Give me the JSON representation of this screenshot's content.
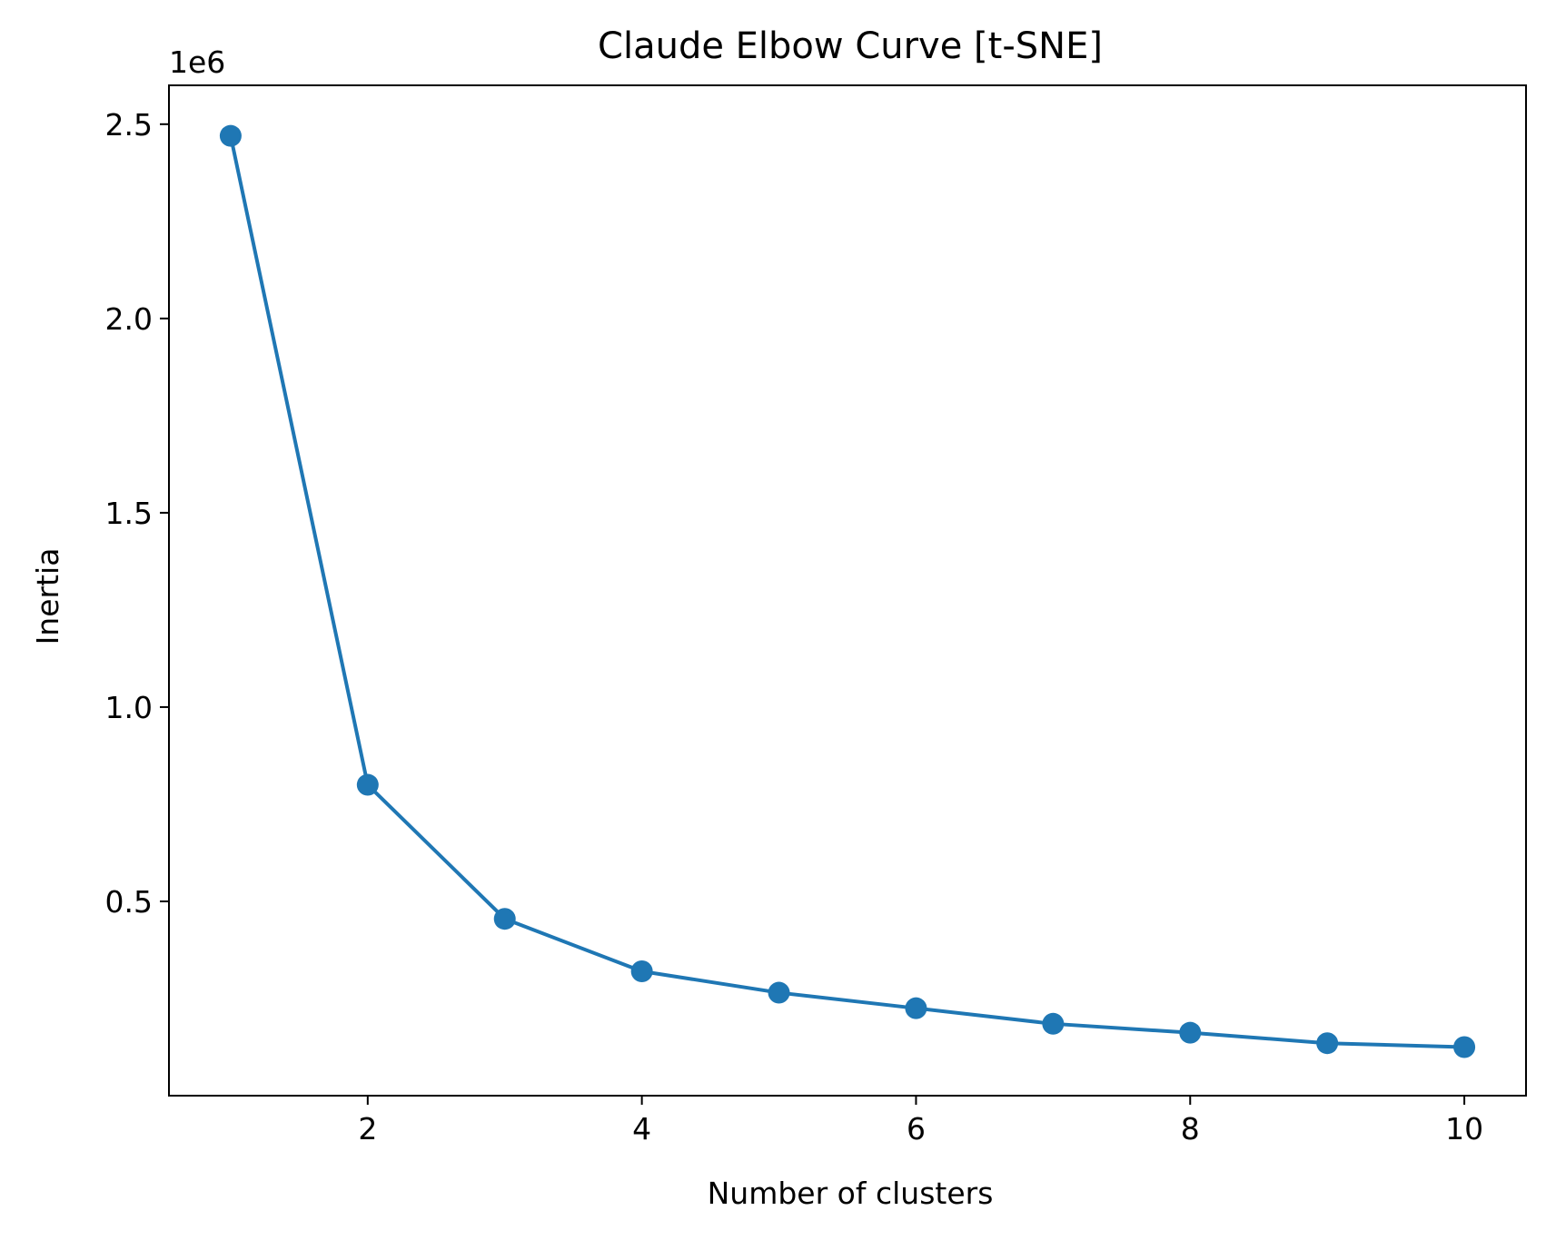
{
  "chart_data": {
    "type": "line",
    "title": "Claude Elbow Curve [t-SNE]",
    "xlabel": "Number of clusters",
    "ylabel": "Inertia",
    "y_offset_label": "1e6",
    "xlim": [
      0.55,
      10.45
    ],
    "ylim": [
      0.0,
      2.6
    ],
    "xticks": [
      2,
      4,
      6,
      8,
      10
    ],
    "xtick_labels": [
      "2",
      "4",
      "6",
      "8",
      "10"
    ],
    "yticks": [
      0.5,
      1.0,
      1.5,
      2.0,
      2.5
    ],
    "ytick_labels": [
      "0.5",
      "1.0",
      "1.5",
      "2.0",
      "2.5"
    ],
    "grid": false,
    "legend": "none",
    "series": [
      {
        "color": "#1f77b4",
        "marker": "circle",
        "x": [
          1,
          2,
          3,
          4,
          5,
          6,
          7,
          8,
          9,
          10
        ],
        "y": [
          2.47,
          0.8,
          0.455,
          0.32,
          0.265,
          0.225,
          0.185,
          0.162,
          0.135,
          0.125
        ]
      }
    ]
  }
}
